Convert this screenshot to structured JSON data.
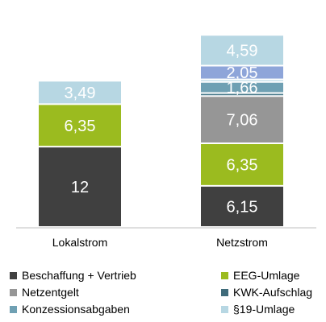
{
  "chart_data": {
    "type": "stacked-bar",
    "title": "",
    "xlabel": "",
    "ylabel": "",
    "categories": [
      "Lokalstrom",
      "Netzstrom"
    ],
    "series": [
      {
        "name": "Beschaffung + Vertrieb",
        "color": "#404040",
        "values": [
          12,
          6.15
        ],
        "labels": [
          "12",
          "6,15"
        ]
      },
      {
        "name": "EEG-Umlage",
        "color": "#9bbb1f",
        "values": [
          6.35,
          6.35
        ],
        "labels": [
          "6,35",
          "6,35"
        ]
      },
      {
        "name": "Netzentgelt",
        "color": "#969696",
        "values": [
          0,
          7.06
        ],
        "labels": [
          "",
          "7,06"
        ]
      },
      {
        "name": "KWK-Aufschlag",
        "color": "#4f7f8f",
        "values": [
          0,
          0.45
        ],
        "labels": [
          "",
          ""
        ]
      },
      {
        "name": "Konzessionsabgaben",
        "color": "#6fa0b3",
        "values": [
          0,
          1.66
        ],
        "labels": [
          "",
          "1,66"
        ]
      },
      {
        "name": "§19-Umlage",
        "color": "#b7d7e3",
        "values": [
          3.49,
          0.38
        ],
        "labels": [
          "3,49",
          ""
        ]
      },
      {
        "name": "",
        "color": "#8ea5d9",
        "values": [
          0,
          2.05
        ],
        "labels": [
          "",
          "2,05"
        ]
      },
      {
        "name": "",
        "color": "#b7d7e3",
        "values": [
          0,
          4.59
        ],
        "labels": [
          "",
          "4,59"
        ]
      }
    ],
    "ylim": [
      0,
      32.7
    ],
    "grid": false,
    "legend": "bottom"
  },
  "legend": [
    {
      "name": "Beschaffung + Vertrieb",
      "color": "#404040"
    },
    {
      "name": "EEG-Umlage",
      "color": "#9bbb1f"
    },
    {
      "name": "Netzentgelt",
      "color": "#969696"
    },
    {
      "name": "KWK-Aufschlag",
      "color": "#3f6b7a"
    },
    {
      "name": "Konzessionsabgaben",
      "color": "#6fa0b3"
    },
    {
      "name": "§19-Umlage",
      "color": "#b7d7e3"
    }
  ]
}
